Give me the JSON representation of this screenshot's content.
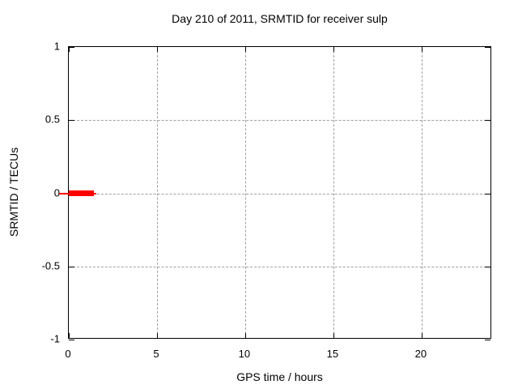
{
  "chart_data": {
    "type": "line",
    "title": "Day 210 of 2011, SRMTID for receiver sulp",
    "xlabel": "GPS time / hours",
    "ylabel": "SRMTID / TECUs",
    "xlim": [
      0,
      24
    ],
    "ylim": [
      -1,
      1
    ],
    "xticks": [
      0,
      5,
      10,
      15,
      20
    ],
    "yticks": [
      1,
      0.5,
      0,
      -0.5,
      -1
    ],
    "grid": true,
    "legend": "none",
    "grid_color": "#a0a0a0",
    "border_color": "#000000",
    "background_color": "#ffffff",
    "series": [
      {
        "name": "SRMTID",
        "color": "#ff0000",
        "y": 0,
        "segments": [
          {
            "x1": -0.55,
            "x2": 1.55,
            "y": 0,
            "style": "thin"
          },
          {
            "x1": 0.0,
            "x2": 1.4,
            "y": 0,
            "style": "thick"
          }
        ]
      }
    ]
  }
}
